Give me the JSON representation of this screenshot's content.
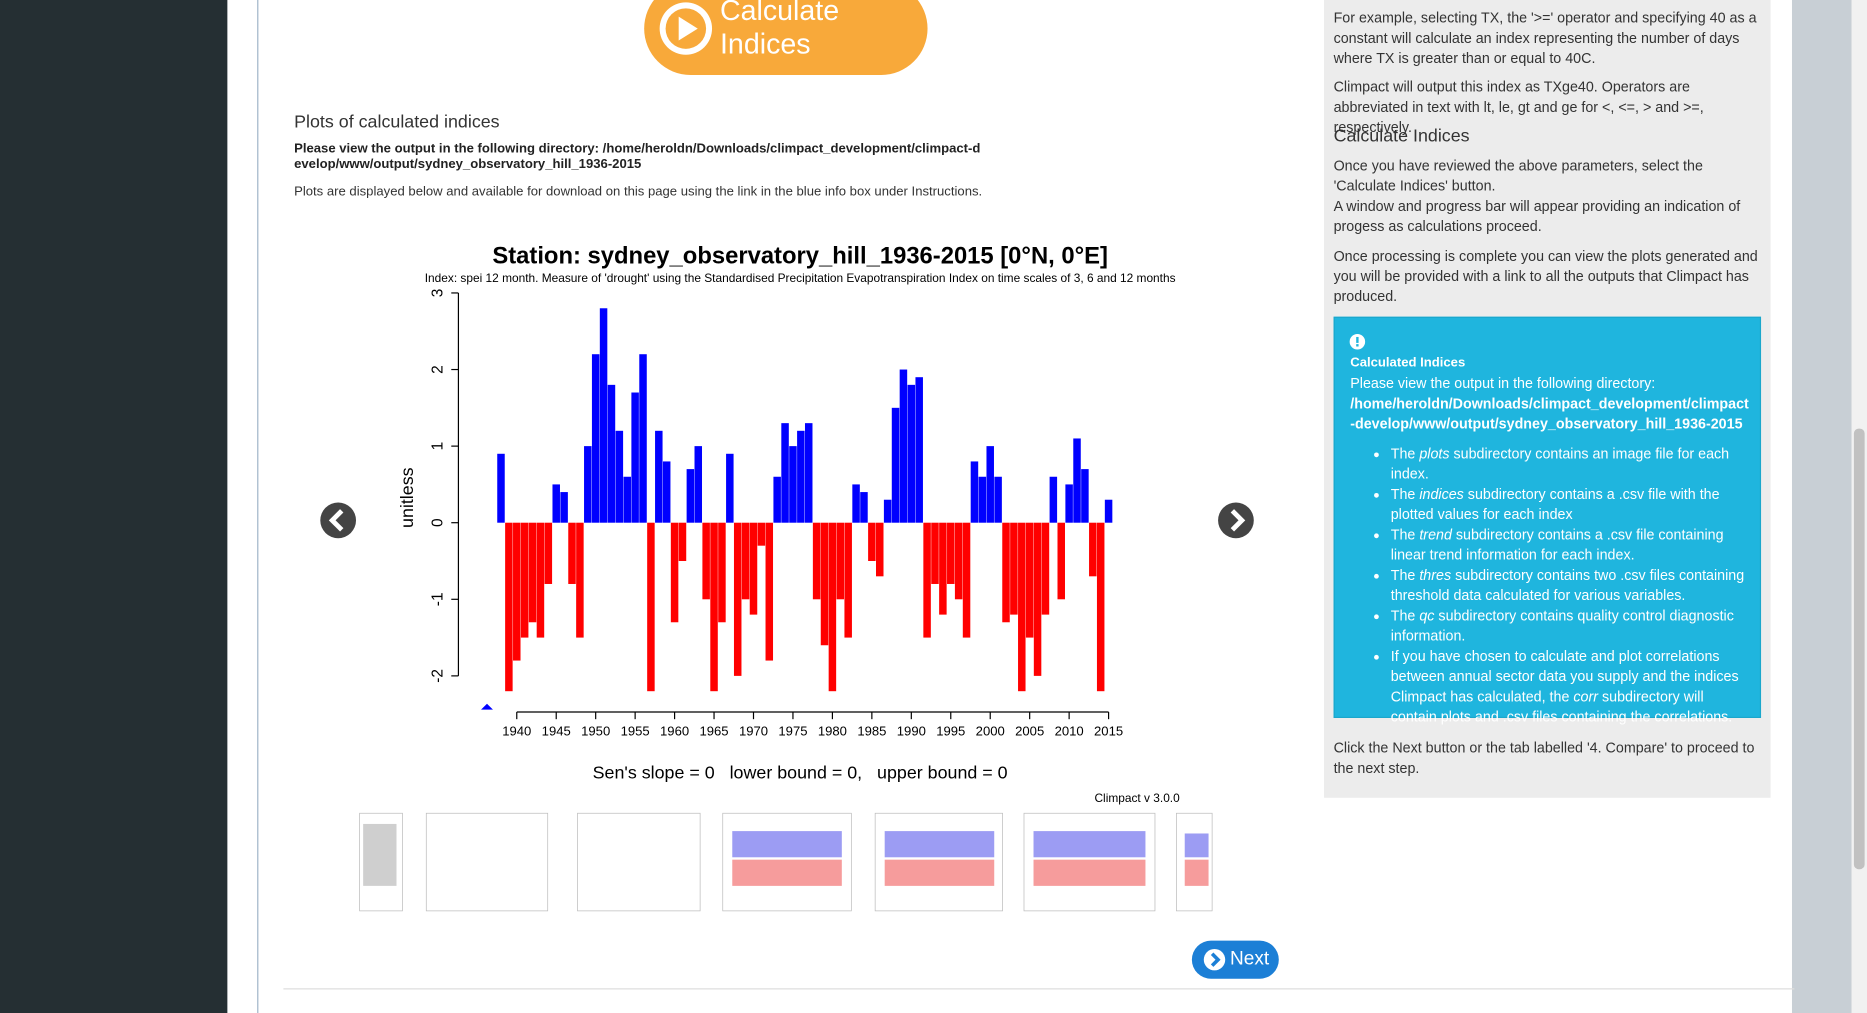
{
  "calculate_button": "Calculate Indices",
  "plots_section": {
    "title": "Plots of calculated indices",
    "directory_intro": "Please view the output in the following directory:",
    "directory_path": "/home/heroldn/Downloads/climpact_development/climpact-develop/www/output/sydney_observatory_hill_1936-2015",
    "note": "Plots are displayed below and available for download on this page using the link in the blue info box under Instructions."
  },
  "chart_data": {
    "type": "bar",
    "title": "Station: sydney_observatory_hill_1936-2015 [0°N, 0°E]",
    "subtitle": "Index: spei 12 month. Measure of 'drought' using the Standardised Precipitation Evapotranspiration Index on time scales of 3, 6 and 12 months",
    "ylabel": "unitless",
    "x": [
      1938,
      1939,
      1940,
      1941,
      1942,
      1943,
      1944,
      1945,
      1946,
      1947,
      1948,
      1949,
      1950,
      1951,
      1952,
      1953,
      1954,
      1955,
      1956,
      1957,
      1958,
      1959,
      1960,
      1961,
      1962,
      1963,
      1964,
      1965,
      1966,
      1967,
      1968,
      1969,
      1970,
      1971,
      1972,
      1973,
      1974,
      1975,
      1976,
      1977,
      1978,
      1979,
      1980,
      1981,
      1982,
      1983,
      1984,
      1985,
      1986,
      1987,
      1988,
      1989,
      1990,
      1991,
      1992,
      1993,
      1994,
      1995,
      1996,
      1997,
      1998,
      1999,
      2000,
      2001,
      2002,
      2003,
      2004,
      2005,
      2006,
      2007,
      2008,
      2009,
      2010,
      2011,
      2012,
      2013,
      2014,
      2015
    ],
    "values": [
      0.9,
      -2.2,
      -1.8,
      -1.5,
      -1.3,
      -1.5,
      -0.8,
      0.5,
      0.4,
      -0.8,
      -1.5,
      1.0,
      2.2,
      2.8,
      1.8,
      1.2,
      0.6,
      1.7,
      2.2,
      -2.2,
      1.2,
      0.8,
      -1.3,
      -0.5,
      0.7,
      1.0,
      -1.0,
      -2.2,
      -1.3,
      0.9,
      -2.0,
      -1.0,
      -1.2,
      -0.3,
      -1.8,
      0.6,
      1.3,
      1.0,
      1.2,
      1.3,
      -1.0,
      -1.6,
      -2.2,
      -1.0,
      -1.5,
      0.5,
      0.4,
      -0.5,
      -0.7,
      0.3,
      1.5,
      2.0,
      1.8,
      1.9,
      -1.5,
      -0.8,
      -1.2,
      -0.8,
      -1.0,
      -1.5,
      0.8,
      0.6,
      1.0,
      0.6,
      -1.3,
      -1.2,
      -2.2,
      -1.5,
      -2.0,
      -1.2,
      0.6,
      -1.0,
      0.5,
      1.1,
      0.7,
      -0.7,
      -2.2,
      0.3
    ],
    "xlim": [
      1936,
      2017
    ],
    "ylim": [
      -2.5,
      3.1
    ],
    "xticks": [
      1940,
      1945,
      1950,
      1955,
      1960,
      1965,
      1970,
      1975,
      1980,
      1985,
      1990,
      1995,
      2000,
      2005,
      2010,
      2015
    ],
    "yticks": [
      -2,
      -1,
      0,
      1,
      2,
      3
    ],
    "colors": {
      "positive": "#0000ff",
      "negative": "#ff0000"
    },
    "footer": "Sen's slope = 0   lower bound = 0,   upper bound = 0",
    "version": "Climpact v 3.0.0"
  },
  "next_button": "Next",
  "instructions": {
    "paragraphs": [
      "For example, selecting TX, the '>=' operator and specifying 40 as a constant will calculate an index representing the number of days where TX is greater than or equal to 40C.",
      "Climpact will output this index as TXge40. Operators are abbreviated in text with lt, le, gt and ge for <, <=, > and >=, respectively."
    ],
    "heading": "Calculate Indices",
    "steps": [
      "Once you have reviewed the above parameters, select the 'Calculate Indices' button.",
      "A window and progress bar will appear providing an indication of progess as calculations proceed."
    ],
    "processing": "Once processing is complete you can view the plots generated and you will be provided with a link to all the outputs that Climpact has produced.",
    "info_box": {
      "title": "Calculated Indices",
      "intro": "Please view the output in the following directory:",
      "path": "/home/heroldn/Downloads/climpact_development/climpact-develop/www/output/sydney_observatory_hill_1936-2015",
      "items": [
        {
          "lead": "The",
          "term": "plots",
          "rest": "subdirectory contains an image file for each index."
        },
        {
          "lead": "The",
          "term": "indices",
          "rest": "subdirectory contains a .csv file with the plotted values for each index"
        },
        {
          "lead": "The",
          "term": "trend",
          "rest": "subdirectory contains a .csv file containing linear trend information for each index."
        },
        {
          "lead": "The",
          "term": "thres",
          "rest": "subdirectory contains two .csv files containing threshold data calculated for various variables."
        },
        {
          "lead": "The",
          "term": "qc",
          "rest": "subdirectory contains quality control diagnostic information."
        },
        {
          "lead": "If you have chosen to calculate and plot correlations between annual sector data you supply and the indices Climpact has calculated, the",
          "term": "corr",
          "rest": "subdirectory will contain plots and .csv files containing the correlations."
        }
      ]
    },
    "next_step": "Click the Next button or the tab labelled '4. Compare' to proceed to the next step."
  }
}
